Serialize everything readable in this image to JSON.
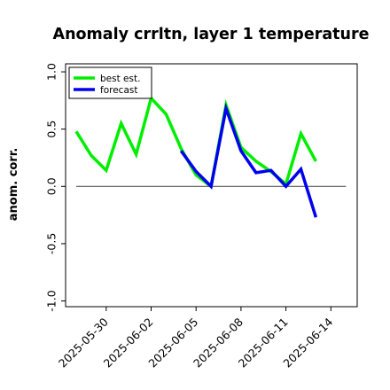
{
  "chart_data": {
    "type": "line",
    "title": "Anomaly crrltn, layer 1 temperature",
    "xlabel": "",
    "ylabel": "anom. corr.",
    "ylim": [
      -1.05,
      1.07
    ],
    "yticks": [
      -1.0,
      -0.5,
      0.0,
      0.5,
      1.0
    ],
    "ytick_labels": [
      "-1.0",
      "-0.5",
      "0.0",
      "0.5",
      "1.0"
    ],
    "x": [
      "2025-05-28",
      "2025-05-29",
      "2025-05-30",
      "2025-05-31",
      "2025-06-01",
      "2025-06-02",
      "2025-06-03",
      "2025-06-04",
      "2025-06-05",
      "2025-06-06",
      "2025-06-07",
      "2025-06-08",
      "2025-06-09",
      "2025-06-10",
      "2025-06-11",
      "2025-06-12",
      "2025-06-13",
      "2025-06-14"
    ],
    "xticks": [
      "2025-05-30",
      "2025-06-02",
      "2025-06-05",
      "2025-06-08",
      "2025-06-11",
      "2025-06-14"
    ],
    "xtick_labels": [
      "2025-05-30",
      "2025-06-02",
      "2025-06-05",
      "2025-06-08",
      "2025-06-11",
      "2025-06-14"
    ],
    "xtick_colors": [
      "#000000",
      "#000000",
      "#228B22",
      "#000000",
      "#000000",
      "#000000"
    ],
    "series": [
      {
        "name": "best est.",
        "color": "#00ee00",
        "values": [
          0.48,
          0.27,
          0.14,
          0.55,
          0.28,
          0.77,
          0.63,
          0.33,
          0.1,
          0.0,
          0.71,
          0.34,
          0.22,
          0.13,
          0.02,
          0.46,
          0.22,
          null
        ]
      },
      {
        "name": "forecast",
        "color": "#0000ee",
        "values": [
          null,
          null,
          null,
          null,
          null,
          null,
          null,
          0.31,
          0.13,
          0.0,
          0.68,
          0.31,
          0.12,
          0.14,
          0.0,
          0.15,
          -0.27,
          null
        ]
      }
    ],
    "zero_line": 0.0,
    "grid": false,
    "legend_position": "top-left"
  }
}
